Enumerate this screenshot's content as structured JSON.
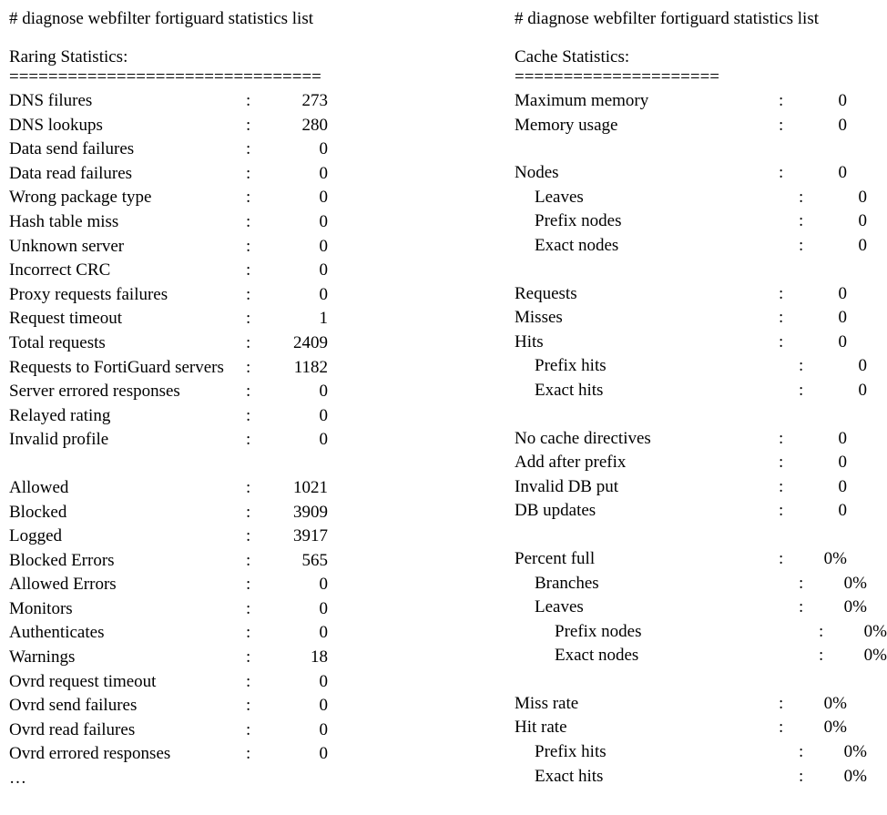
{
  "left": {
    "command": "# diagnose webfilter fortiguard statistics list",
    "section_title": "Raring Statistics:",
    "divider": "================================",
    "groups": [
      [
        {
          "label": "DNS filures",
          "value": "273"
        },
        {
          "label": "DNS lookups",
          "value": "280"
        },
        {
          "label": "Data send failures",
          "value": "0"
        },
        {
          "label": "Data read failures",
          "value": "0"
        },
        {
          "label": "Wrong package type",
          "value": "0"
        },
        {
          "label": "Hash table miss",
          "value": "0"
        },
        {
          "label": "Unknown server",
          "value": "0"
        },
        {
          "label": "Incorrect CRC",
          "value": "0"
        },
        {
          "label": "Proxy requests failures",
          "value": "0"
        },
        {
          "label": "Request timeout",
          "value": "1"
        },
        {
          "label": "Total requests",
          "value": "2409"
        },
        {
          "label": "Requests to FortiGuard servers",
          "value": "1182"
        },
        {
          "label": "Server errored responses",
          "value": "0"
        },
        {
          "label": "Relayed rating",
          "value": "0"
        },
        {
          "label": "Invalid profile",
          "value": "0"
        }
      ],
      [
        {
          "label": "Allowed",
          "value": "1021"
        },
        {
          "label": "Blocked",
          "value": "3909"
        },
        {
          "label": "Logged",
          "value": "3917"
        },
        {
          "label": "Blocked Errors",
          "value": "565"
        },
        {
          "label": "Allowed Errors",
          "value": "0"
        },
        {
          "label": "Monitors",
          "value": "0"
        },
        {
          "label": "Authenticates",
          "value": "0"
        },
        {
          "label": "Warnings",
          "value": "18"
        },
        {
          "label": "Ovrd request timeout",
          "value": "0"
        },
        {
          "label": "Ovrd send failures",
          "value": "0"
        },
        {
          "label": "Ovrd read failures",
          "value": "0"
        },
        {
          "label": "Ovrd errored responses",
          "value": "0"
        }
      ]
    ],
    "trailer": "…"
  },
  "right": {
    "command": "# diagnose webfilter fortiguard statistics list",
    "section_title": "Cache Statistics:",
    "divider": "=====================",
    "groups": [
      [
        {
          "label": "Maximum memory",
          "value": "0"
        },
        {
          "label": "Memory usage",
          "value": "0"
        }
      ],
      [
        {
          "label": "Nodes",
          "value": "0"
        },
        {
          "label": "Leaves",
          "value": "0",
          "indent": 1
        },
        {
          "label": "Prefix nodes",
          "value": "0",
          "indent": 1
        },
        {
          "label": "Exact nodes",
          "value": "0",
          "indent": 1
        }
      ],
      [
        {
          "label": "Requests",
          "value": "0"
        },
        {
          "label": "Misses",
          "value": "0"
        },
        {
          "label": "Hits",
          "value": "0"
        },
        {
          "label": "Prefix hits",
          "value": "0",
          "indent": 1
        },
        {
          "label": "Exact hits",
          "value": "0",
          "indent": 1
        }
      ],
      [
        {
          "label": "No cache directives",
          "value": "0"
        },
        {
          "label": "Add after prefix",
          "value": "0"
        },
        {
          "label": "Invalid DB put",
          "value": "0"
        },
        {
          "label": "DB updates",
          "value": "0"
        }
      ],
      [
        {
          "label": "Percent full",
          "value": "0%"
        },
        {
          "label": "Branches",
          "value": "0%",
          "indent": 1
        },
        {
          "label": "Leaves",
          "value": "0%",
          "indent": 1
        },
        {
          "label": "Prefix nodes",
          "value": "0%",
          "indent": 2
        },
        {
          "label": "Exact nodes",
          "value": "0%",
          "indent": 2
        }
      ],
      [
        {
          "label": "Miss rate",
          "value": "0%"
        },
        {
          "label": "Hit rate",
          "value": "0%"
        },
        {
          "label": "Prefix hits",
          "value": "0%",
          "indent": 1
        },
        {
          "label": "Exact hits",
          "value": "0%",
          "indent": 1
        }
      ]
    ]
  }
}
